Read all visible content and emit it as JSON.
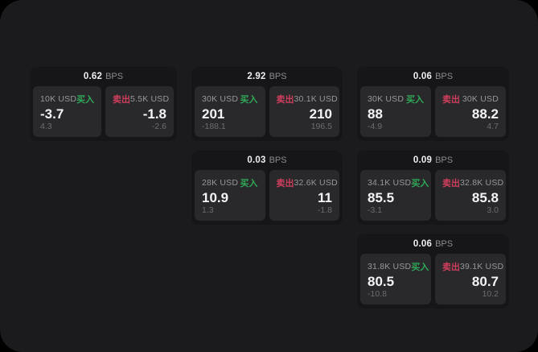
{
  "colors": {
    "surface": "#1b1b1d",
    "card": "#161618",
    "panel": "#29292c",
    "buy_green": "#2fa857",
    "sell_red": "#cf3f5c"
  },
  "cards": [
    {
      "bps": "0.62",
      "unit": "BPS",
      "buy": {
        "size": "10K USD",
        "label": "买入",
        "price": "-3.7",
        "delta": "4.3"
      },
      "sell": {
        "size": "5.5K USD",
        "label": "卖出",
        "price": "-1.8",
        "delta": "-2.6"
      }
    },
    {
      "bps": "2.92",
      "unit": "BPS",
      "buy": {
        "size": "30K USD",
        "label": "买入",
        "price": "201",
        "delta": "-188.1"
      },
      "sell": {
        "size": "30.1K USD",
        "label": "卖出",
        "price": "210",
        "delta": "196.5"
      }
    },
    {
      "bps": "0.06",
      "unit": "BPS",
      "buy": {
        "size": "30K USD",
        "label": "买入",
        "price": "88",
        "delta": "-4.9"
      },
      "sell": {
        "size": "30K USD",
        "label": "卖出",
        "price": "88.2",
        "delta": "4.7"
      }
    },
    {
      "bps": "0.03",
      "unit": "BPS",
      "buy": {
        "size": "28K USD",
        "label": "买入",
        "price": "10.9",
        "delta": "1.3"
      },
      "sell": {
        "size": "32.6K USD",
        "label": "卖出",
        "price": "11",
        "delta": "-1.8"
      }
    },
    {
      "bps": "0.09",
      "unit": "BPS",
      "buy": {
        "size": "34.1K USD",
        "label": "买入",
        "price": "85.5",
        "delta": "-3.1"
      },
      "sell": {
        "size": "32.8K USD",
        "label": "卖出",
        "price": "85.8",
        "delta": "3.0"
      }
    },
    {
      "bps": "0.06",
      "unit": "BPS",
      "buy": {
        "size": "31.8K USD",
        "label": "买入",
        "price": "80.5",
        "delta": "-10.8"
      },
      "sell": {
        "size": "39.1K USD",
        "label": "卖出",
        "price": "80.7",
        "delta": "10.2"
      }
    }
  ]
}
